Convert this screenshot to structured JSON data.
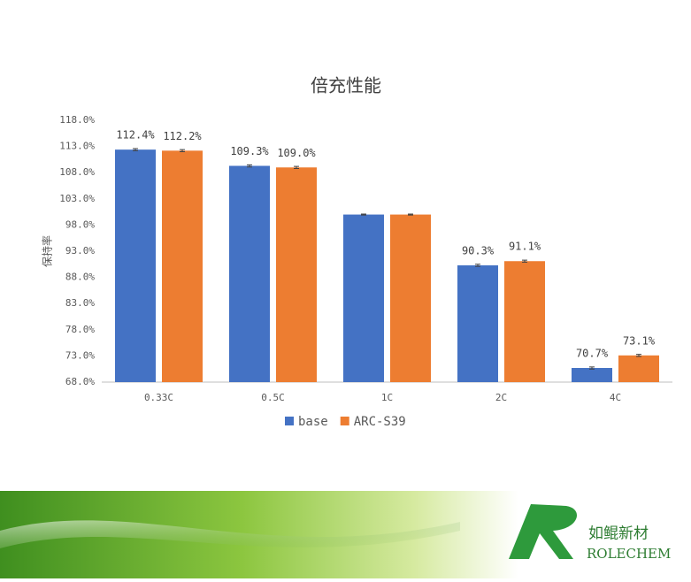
{
  "chart_data": {
    "type": "bar",
    "title": "倍充性能",
    "y_label": "保持率",
    "categories": [
      "0.33C",
      "0.5C",
      "1C",
      "2C",
      "4C"
    ],
    "series": [
      {
        "name": "base",
        "color": "#4472c4",
        "values": [
          112.4,
          109.3,
          100.0,
          90.3,
          70.7
        ],
        "errors": [
          0.2,
          0.2,
          0.1,
          0.2,
          0.2
        ],
        "value_labels": [
          "112.4%",
          "109.3%",
          null,
          "90.3%",
          "70.7%"
        ]
      },
      {
        "name": "ARC-S39",
        "color": "#ed7d31",
        "values": [
          112.2,
          109.0,
          100.0,
          91.1,
          73.1
        ],
        "errors": [
          0.2,
          0.2,
          0.1,
          0.2,
          0.2
        ],
        "value_labels": [
          "112.2%",
          "109.0%",
          null,
          "91.1%",
          "73.1%"
        ]
      }
    ],
    "ylim": [
      68,
      118
    ],
    "yticks": [
      {
        "value": 68,
        "label": "68.0%"
      },
      {
        "value": 73,
        "label": "73.0%"
      },
      {
        "value": 78,
        "label": "78.0%"
      },
      {
        "value": 83,
        "label": "83.0%"
      },
      {
        "value": 88,
        "label": "88.0%"
      },
      {
        "value": 93,
        "label": "93.0%"
      },
      {
        "value": 98,
        "label": "98.0%"
      },
      {
        "value": 103,
        "label": "103.0%"
      },
      {
        "value": 108,
        "label": "108.0%"
      },
      {
        "value": 113,
        "label": "113.0%"
      },
      {
        "value": 118,
        "label": "118.0%"
      }
    ],
    "grid": false,
    "legend": "bottom"
  },
  "branding": {
    "name_cn": "如鲲新材",
    "name_en": "ROLECHEM"
  }
}
